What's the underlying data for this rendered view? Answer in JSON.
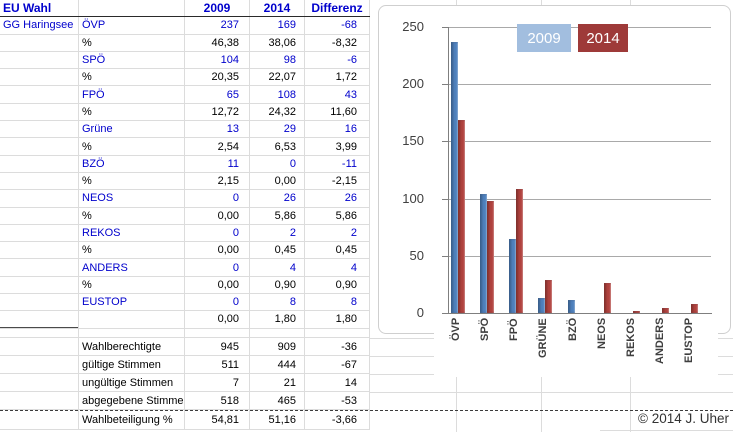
{
  "sheet": {
    "title": "EU Wahl",
    "header": {
      "a": "EU Wahl",
      "b": "",
      "c": "2009",
      "d": "2014",
      "e": "Differenz"
    },
    "region_label": "GG Haringsee",
    "rows": [
      {
        "kind": "party",
        "a": "GG Haringsee",
        "b": "ÖVP",
        "c": "237",
        "d": "169",
        "e": "-68"
      },
      {
        "kind": "pct",
        "b": "%",
        "c": "46,38",
        "d": "38,06",
        "e": "-8,32"
      },
      {
        "kind": "party",
        "b": "SPÖ",
        "c": "104",
        "d": "98",
        "e": "-6"
      },
      {
        "kind": "pct",
        "b": "%",
        "c": "20,35",
        "d": "22,07",
        "e": "1,72"
      },
      {
        "kind": "party",
        "b": "FPÖ",
        "c": "65",
        "d": "108",
        "e": "43"
      },
      {
        "kind": "pct",
        "b": "%",
        "c": "12,72",
        "d": "24,32",
        "e": "11,60"
      },
      {
        "kind": "party",
        "b": "Grüne",
        "c": "13",
        "d": "29",
        "e": "16"
      },
      {
        "kind": "pct",
        "b": "%",
        "c": "2,54",
        "d": "6,53",
        "e": "3,99"
      },
      {
        "kind": "party",
        "b": "BZÖ",
        "c": "11",
        "d": "0",
        "e": "-11"
      },
      {
        "kind": "pct",
        "b": "%",
        "c": "2,15",
        "d": "0,00",
        "e": "-2,15"
      },
      {
        "kind": "party",
        "b": "NEOS",
        "c": "0",
        "d": "26",
        "e": "26"
      },
      {
        "kind": "pct",
        "b": "%",
        "c": "0,00",
        "d": "5,86",
        "e": "5,86"
      },
      {
        "kind": "party",
        "b": "REKOS",
        "c": "0",
        "d": "2",
        "e": "2"
      },
      {
        "kind": "pct",
        "b": "%",
        "c": "0,00",
        "d": "0,45",
        "e": "0,45"
      },
      {
        "kind": "party",
        "b": "ANDERS",
        "c": "0",
        "d": "4",
        "e": "4"
      },
      {
        "kind": "pct",
        "b": "%",
        "c": "0,00",
        "d": "0,90",
        "e": "0,90"
      },
      {
        "kind": "party",
        "b": "EUSTOP",
        "c": "0",
        "d": "8",
        "e": "8"
      },
      {
        "kind": "pct-last",
        "b": "",
        "c": "0,00",
        "d": "1,80",
        "e": "1,80"
      },
      {
        "kind": "gap"
      },
      {
        "kind": "stat",
        "b": "Wahlberechtigte",
        "c": "945",
        "d": "909",
        "e": "-36"
      },
      {
        "kind": "stat",
        "b": "gültige Stimmen",
        "c": "511",
        "d": "444",
        "e": "-67"
      },
      {
        "kind": "stat",
        "b": "ungültige Stimmen",
        "c": "7",
        "d": "21",
        "e": "14"
      },
      {
        "kind": "stat",
        "b": "abgegebene Stimme",
        "c": "518",
        "d": "465",
        "e": "-53"
      },
      {
        "kind": "total",
        "b": "Wahlbeteiligung %",
        "c": "54,81",
        "d": "51,16",
        "e": "-3,66"
      }
    ],
    "copyright": "© 2014 J. Uher"
  },
  "chart_data": {
    "type": "bar",
    "title": "",
    "categories": [
      "ÖVP",
      "SPÖ",
      "FPÖ",
      "GRÜNE",
      "BZÖ",
      "NEOS",
      "REKOS",
      "ANDERS",
      "EUSTOP"
    ],
    "series": [
      {
        "name": "2009",
        "color": "#4F81BD",
        "legend_color": "#A2BEDF",
        "values": [
          237,
          104,
          65,
          13,
          11,
          0,
          0,
          0,
          0
        ]
      },
      {
        "name": "2014",
        "color": "#B1433F",
        "legend_color": "#9E3A39",
        "values": [
          169,
          98,
          108,
          29,
          0,
          26,
          2,
          4,
          8
        ]
      }
    ],
    "ylim": [
      0,
      250
    ],
    "yticks": [
      0,
      50,
      100,
      150,
      200,
      250
    ],
    "grid": "horizontal",
    "legend_position": "top-center"
  },
  "colors": {
    "table_text_blue": "#0000CC",
    "table_text_black": "#000000",
    "gridline": "#DCDCDC",
    "chart_gridline": "#A9A9A9",
    "bar_2009": "#4F81BD",
    "bar_2014": "#B1433F",
    "legend_2009_bg": "#A2BEDF",
    "legend_2014_bg": "#9E3A39"
  }
}
